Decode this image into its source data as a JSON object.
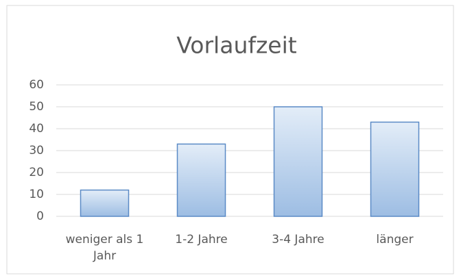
{
  "chart_data": {
    "type": "bar",
    "title": "Vorlaufzeit",
    "categories": [
      "weniger als 1 Jahr",
      "1-2 Jahre",
      "3-4 Jahre",
      "länger"
    ],
    "values": [
      12,
      33,
      50,
      43
    ],
    "color": "#5a8ac6",
    "ylim": [
      0,
      60
    ],
    "yticks": [
      0,
      10,
      20,
      30,
      40,
      50,
      60
    ],
    "grid": true
  }
}
